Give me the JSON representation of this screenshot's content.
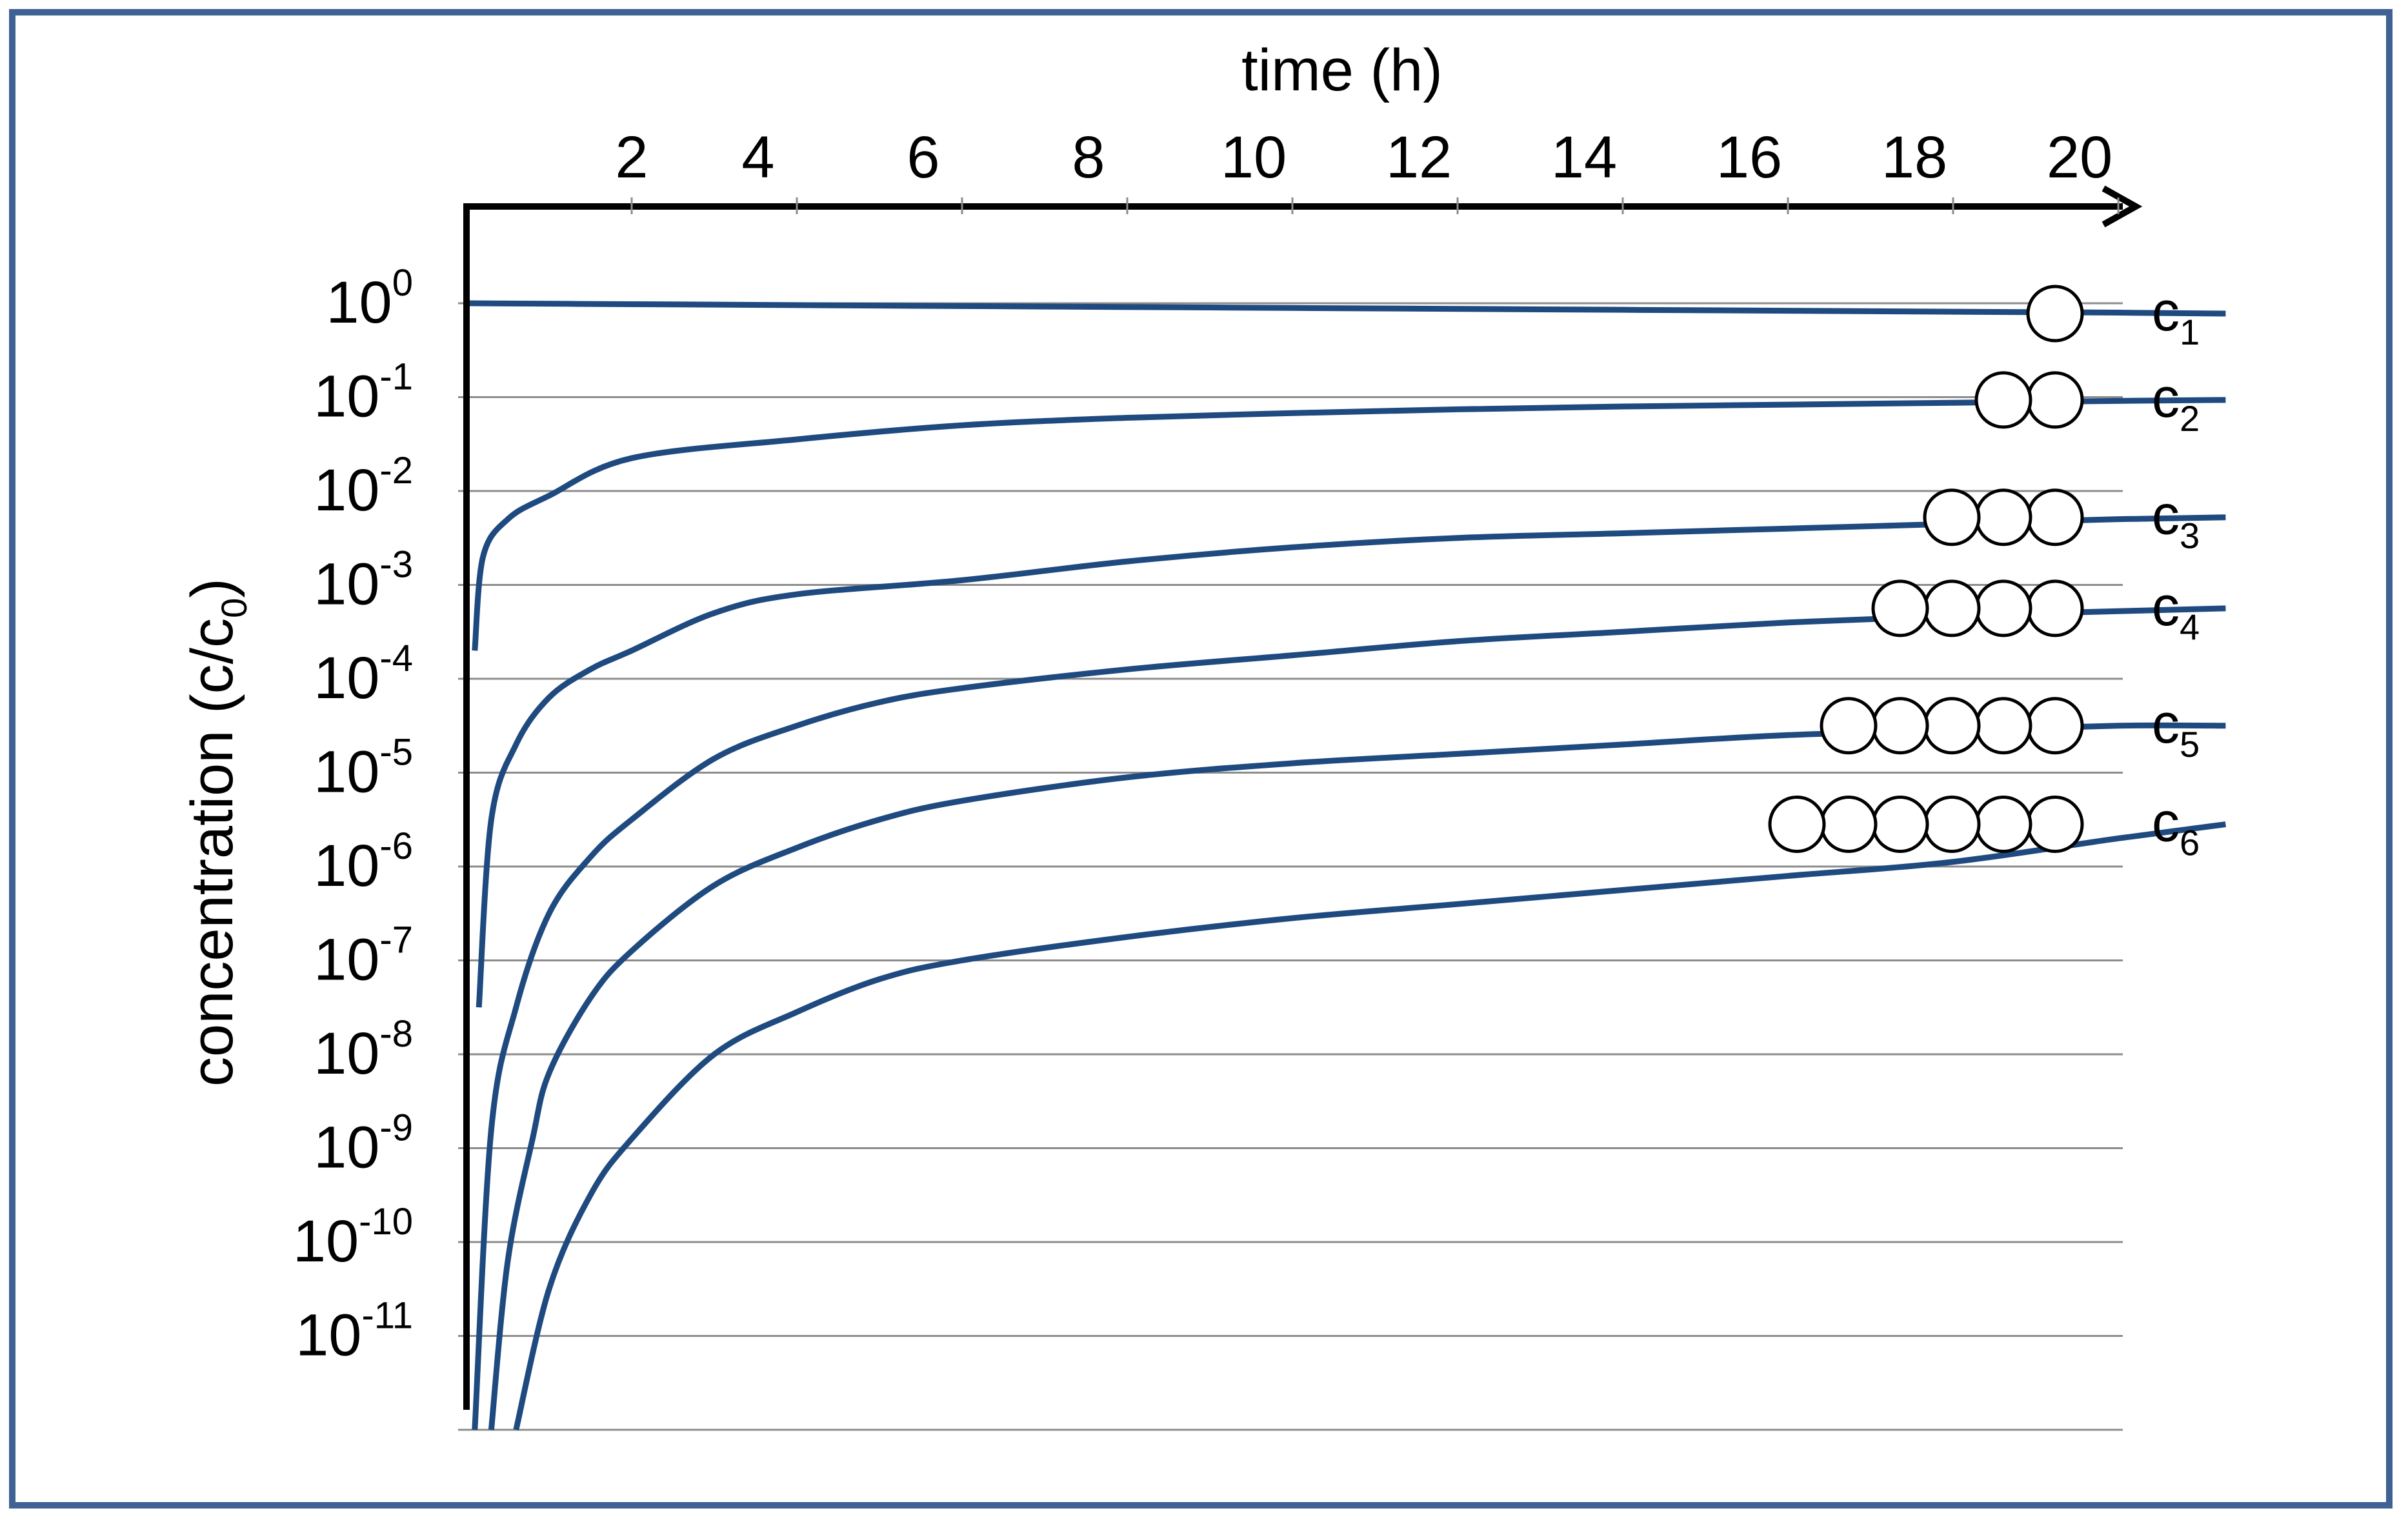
{
  "chart_data": {
    "type": "line",
    "title": "",
    "xlabel": "time (h)",
    "ylabel_main": "concentration (c/c",
    "ylabel_sub": "0",
    "ylabel_close": ")",
    "x_ticks": [
      "2",
      "4",
      "6",
      "8",
      "10",
      "12",
      "14",
      "16",
      "18",
      "20"
    ],
    "x_range": [
      0,
      21.3
    ],
    "y_scale": "log",
    "y_range_exponent": [
      -12,
      0.5
    ],
    "y_ticks": [
      {
        "base": "10",
        "exp": "0"
      },
      {
        "base": "10",
        "exp": "-1"
      },
      {
        "base": "10",
        "exp": "-2"
      },
      {
        "base": "10",
        "exp": "-3"
      },
      {
        "base": "10",
        "exp": "-4"
      },
      {
        "base": "10",
        "exp": "-5"
      },
      {
        "base": "10",
        "exp": "-6"
      },
      {
        "base": "10",
        "exp": "-7"
      },
      {
        "base": "10",
        "exp": "-8"
      },
      {
        "base": "10",
        "exp": "-9"
      },
      {
        "base": "10",
        "exp": "-10"
      },
      {
        "base": "10",
        "exp": "-11"
      }
    ],
    "grid": true,
    "line_color": "#1f4a80",
    "series": [
      {
        "name": "c",
        "sub": "1",
        "beads": 1,
        "x": [
          0,
          2,
          4,
          6,
          8,
          10,
          12,
          14,
          16,
          18,
          20,
          21.3
        ],
        "log10_y": [
          0,
          -0.01,
          -0.02,
          -0.03,
          -0.04,
          -0.05,
          -0.06,
          -0.07,
          -0.08,
          -0.09,
          -0.1,
          -0.11
        ]
      },
      {
        "name": "c",
        "sub": "2",
        "beads": 2,
        "x": [
          0.1,
          0.2,
          0.5,
          1,
          2,
          4,
          6,
          8,
          10,
          12,
          14,
          16,
          18,
          20,
          21.3
        ],
        "log10_y": [
          -3.7,
          -2.7,
          -2.3,
          -2.05,
          -1.65,
          -1.45,
          -1.3,
          -1.22,
          -1.17,
          -1.13,
          -1.1,
          -1.08,
          -1.06,
          -1.04,
          -1.03
        ]
      },
      {
        "name": "c",
        "sub": "3",
        "beads": 3,
        "x": [
          0.15,
          0.3,
          0.6,
          1,
          1.5,
          2,
          3,
          4,
          6,
          8,
          10,
          12,
          14,
          16,
          18,
          20,
          21.3
        ],
        "log10_y": [
          -7.5,
          -5.5,
          -4.7,
          -4.2,
          -3.9,
          -3.7,
          -3.3,
          -3.1,
          -2.95,
          -2.75,
          -2.6,
          -2.5,
          -2.45,
          -2.4,
          -2.35,
          -2.3,
          -2.28
        ]
      },
      {
        "name": "c",
        "sub": "4",
        "beads": 4,
        "x": [
          0.1,
          0.3,
          0.6,
          1,
          1.5,
          2,
          3,
          4,
          5,
          6,
          8,
          10,
          12,
          14,
          16,
          18,
          20,
          21.3
        ],
        "log10_y": [
          -12,
          -8.8,
          -7.5,
          -6.5,
          -5.9,
          -5.5,
          -4.85,
          -4.5,
          -4.25,
          -4.1,
          -3.9,
          -3.75,
          -3.6,
          -3.5,
          -3.4,
          -3.33,
          -3.28,
          -3.25
        ]
      },
      {
        "name": "c",
        "sub": "5",
        "beads": 5,
        "x": [
          0.3,
          0.5,
          0.8,
          1,
          1.5,
          2,
          3,
          4,
          5,
          6,
          8,
          10,
          12,
          14,
          16,
          18,
          20,
          21.3
        ],
        "log10_y": [
          -12,
          -10.2,
          -8.9,
          -8.2,
          -7.4,
          -6.9,
          -6.2,
          -5.8,
          -5.5,
          -5.3,
          -5.05,
          -4.9,
          -4.8,
          -4.7,
          -4.6,
          -4.55,
          -4.5,
          -4.5
        ]
      },
      {
        "name": "c",
        "sub": "6",
        "beads": 6,
        "x": [
          0.6,
          1,
          1.5,
          2,
          3,
          4,
          5,
          6,
          8,
          10,
          12,
          14,
          16,
          18,
          20,
          21.3
        ],
        "log10_y": [
          -12,
          -10.5,
          -9.5,
          -8.9,
          -8.0,
          -7.55,
          -7.2,
          -7.0,
          -6.75,
          -6.55,
          -6.4,
          -6.25,
          -6.1,
          -5.95,
          -5.7,
          -5.55
        ]
      }
    ]
  }
}
